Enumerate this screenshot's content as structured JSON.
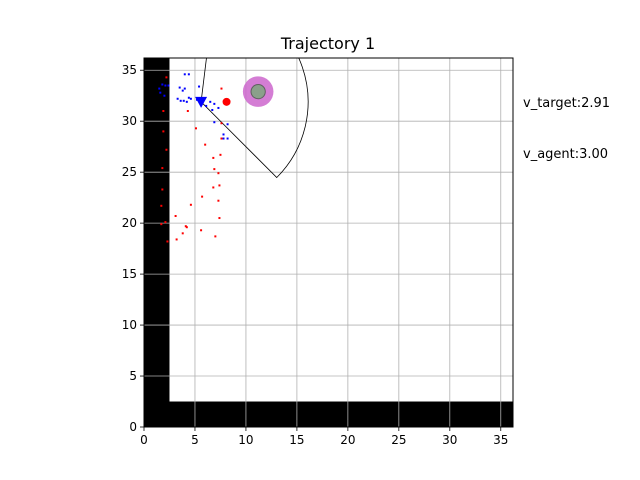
{
  "chart_data": {
    "type": "scatter",
    "title": "Trajectory 1",
    "xlabel": "",
    "ylabel": "",
    "xlim": [
      0,
      36.2
    ],
    "ylim": [
      0,
      36.2
    ],
    "x_ticks": [
      0,
      5,
      10,
      15,
      20,
      25,
      30,
      35
    ],
    "y_ticks": [
      0,
      5,
      10,
      15,
      20,
      25,
      30,
      35
    ],
    "grid": true,
    "annotations": [
      "v_target:2.91",
      "v_agent:3.00"
    ],
    "walls": [
      {
        "x0": 0,
        "x1": 2.5,
        "y0": 0,
        "y1": 36.2
      },
      {
        "x0": 0,
        "x1": 36.2,
        "y0": 0,
        "y1": 2.5
      }
    ],
    "agent": {
      "x": 5.6,
      "y": 31.9,
      "color": "#0000ff",
      "marker": "triangle-down"
    },
    "target": {
      "x": 8.1,
      "y": 31.9,
      "color": "#ff0000"
    },
    "goal": {
      "x": 11.2,
      "y": 32.9,
      "radius": 1.5,
      "inner_radius": 0.7,
      "color": "#cc66cc"
    },
    "view_cone": {
      "x": 5.6,
      "y": 31.9,
      "radius": 10.5,
      "start_deg": -45,
      "end_deg": 83
    },
    "series": [
      {
        "name": "",
        "color": "#ff0000",
        "points": [
          [
            1.7,
            19.9
          ],
          [
            2.1,
            20.1
          ],
          [
            2.3,
            18.2
          ],
          [
            3.1,
            20.7
          ],
          [
            3.2,
            18.4
          ],
          [
            3.8,
            19.0
          ],
          [
            4.1,
            19.7
          ],
          [
            4.2,
            19.6
          ],
          [
            5.6,
            19.3
          ],
          [
            7.0,
            18.7
          ],
          [
            7.4,
            20.5
          ],
          [
            4.6,
            21.8
          ],
          [
            5.7,
            22.6
          ],
          [
            7.3,
            22.2
          ],
          [
            6.8,
            23.5
          ],
          [
            7.4,
            23.7
          ],
          [
            7.3,
            24.9
          ],
          [
            6.9,
            25.3
          ],
          [
            6.8,
            26.4
          ],
          [
            7.5,
            26.7
          ],
          [
            6.0,
            27.7
          ],
          [
            7.6,
            28.3
          ],
          [
            5.1,
            29.3
          ],
          [
            7.6,
            29.8
          ],
          [
            1.7,
            21.7
          ],
          [
            1.8,
            23.3
          ],
          [
            1.8,
            25.4
          ],
          [
            2.2,
            27.2
          ],
          [
            1.9,
            29.0
          ],
          [
            1.9,
            31.0
          ],
          [
            4.3,
            31.0
          ],
          [
            7.6,
            33.2
          ],
          [
            2.2,
            34.3
          ]
        ]
      },
      {
        "name": "",
        "color": "#0000ff",
        "points": [
          [
            1.5,
            33.2
          ],
          [
            1.8,
            33.6
          ],
          [
            2.1,
            33.5
          ],
          [
            2.4,
            33.5
          ],
          [
            1.6,
            32.8
          ],
          [
            2.0,
            32.5
          ],
          [
            3.3,
            32.2
          ],
          [
            3.6,
            32.0
          ],
          [
            3.5,
            33.3
          ],
          [
            3.8,
            33.0
          ],
          [
            4.0,
            33.2
          ],
          [
            3.9,
            32.0
          ],
          [
            4.4,
            32.3
          ],
          [
            4.2,
            31.9
          ],
          [
            4.6,
            32.2
          ],
          [
            5.2,
            32.1
          ],
          [
            6.5,
            31.9
          ],
          [
            6.9,
            31.7
          ],
          [
            7.3,
            31.3
          ],
          [
            6.7,
            31.1
          ],
          [
            6.1,
            31.5
          ],
          [
            5.4,
            33.4
          ],
          [
            4.0,
            34.6
          ],
          [
            4.4,
            34.6
          ],
          [
            7.8,
            28.7
          ],
          [
            7.8,
            28.3
          ],
          [
            8.2,
            28.3
          ],
          [
            8.2,
            29.7
          ],
          [
            6.9,
            29.9
          ]
        ]
      }
    ]
  },
  "side_labels": {
    "v_target": "v_target:2.91",
    "v_agent": "v_agent:3.00"
  }
}
